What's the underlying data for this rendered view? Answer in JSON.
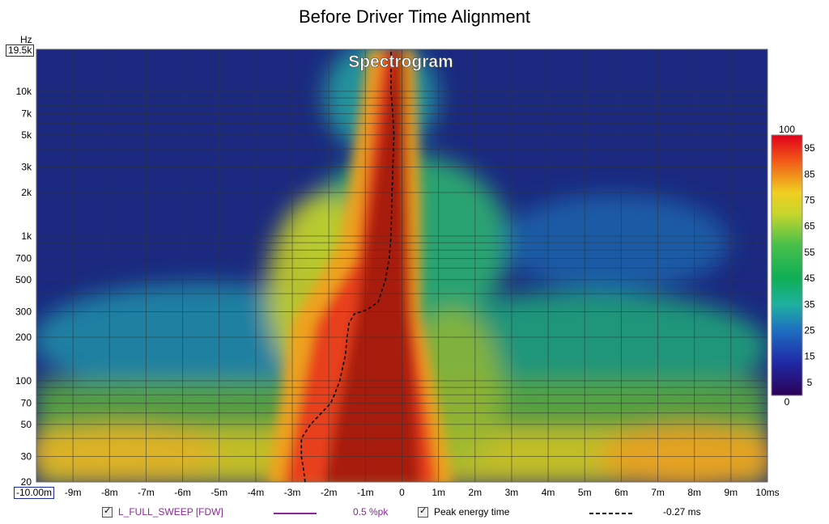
{
  "chart_data": {
    "type": "heatmap",
    "title": "Before Driver Time Alignment",
    "subtitle": "Spectrogram",
    "x_axis": {
      "unit": "ms",
      "range": [
        -10,
        10
      ],
      "tick_values": [
        -9,
        -8,
        -7,
        -6,
        -5,
        -4,
        -3,
        -2,
        -1,
        0,
        1,
        2,
        3,
        4,
        5,
        6,
        7,
        8,
        9,
        10
      ],
      "tick_labels": [
        "-9m",
        "-8m",
        "-7m",
        "-6m",
        "-5m",
        "-4m",
        "-3m",
        "-2m",
        "-1m",
        "0",
        "1m",
        "2m",
        "3m",
        "4m",
        "5m",
        "6m",
        "7m",
        "8m",
        "9m",
        "10ms"
      ],
      "start_label": "-10.00m"
    },
    "y_axis": {
      "unit": "Hz",
      "scale": "log",
      "range": [
        20,
        19500
      ],
      "tick_values": [
        20,
        30,
        50,
        70,
        100,
        200,
        300,
        500,
        700,
        1000,
        2000,
        3000,
        5000,
        7000,
        10000
      ],
      "tick_labels": [
        "20",
        "30",
        "50",
        "70",
        "100",
        "200",
        "300",
        "500",
        "700",
        "1k",
        "2k",
        "3k",
        "5k",
        "7k",
        "10k"
      ],
      "top_label": "19.5k"
    },
    "colorbar": {
      "range": [
        0,
        100
      ],
      "top_label": "100",
      "bottom_label": "0",
      "tick_values": [
        95,
        85,
        75,
        65,
        55,
        45,
        35,
        25,
        15,
        5
      ]
    },
    "series": [
      {
        "name": "L_FULL_SWEEP [FDW]",
        "legend_value": "0.5 %pk",
        "color": "#8a2a9a",
        "type": "spectrogram"
      },
      {
        "name": "Peak energy time",
        "legend_value": "-0.27 ms",
        "color": "#000000",
        "type": "dashed-line",
        "points": [
          {
            "freq": 20,
            "time": -2.65
          },
          {
            "freq": 25,
            "time": -2.7
          },
          {
            "freq": 30,
            "time": -2.75
          },
          {
            "freq": 40,
            "time": -2.75
          },
          {
            "freq": 50,
            "time": -2.5
          },
          {
            "freq": 60,
            "time": -2.2
          },
          {
            "freq": 70,
            "time": -1.95
          },
          {
            "freq": 80,
            "time": -1.85
          },
          {
            "freq": 100,
            "time": -1.7
          },
          {
            "freq": 150,
            "time": -1.55
          },
          {
            "freq": 200,
            "time": -1.5
          },
          {
            "freq": 250,
            "time": -1.45
          },
          {
            "freq": 290,
            "time": -1.3
          },
          {
            "freq": 310,
            "time": -0.95
          },
          {
            "freq": 350,
            "time": -0.65
          },
          {
            "freq": 500,
            "time": -0.45
          },
          {
            "freq": 700,
            "time": -0.35
          },
          {
            "freq": 1000,
            "time": -0.3
          },
          {
            "freq": 2000,
            "time": -0.27
          },
          {
            "freq": 3000,
            "time": -0.25
          },
          {
            "freq": 5000,
            "time": -0.22
          },
          {
            "freq": 7000,
            "time": -0.25
          },
          {
            "freq": 10000,
            "time": -0.3
          },
          {
            "freq": 15000,
            "time": -0.3
          },
          {
            "freq": 19500,
            "time": -0.3
          }
        ]
      }
    ],
    "legend_position": "bottom"
  }
}
